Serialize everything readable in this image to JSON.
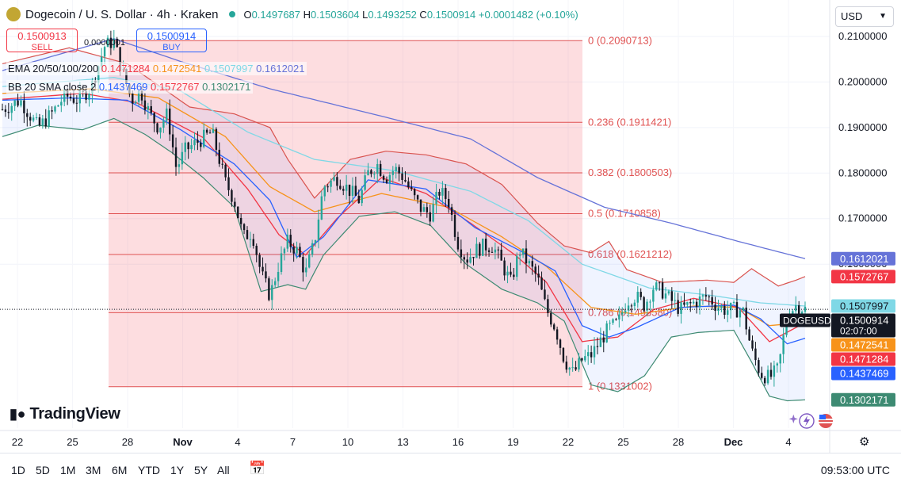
{
  "header": {
    "title": "Dogecoin / U. S. Dollar · 4h · Kraken",
    "open_label": "O",
    "open": "0.1497687",
    "high_label": "H",
    "high": "0.1503604",
    "low_label": "L",
    "low": "0.1493252",
    "close_label": "C",
    "close": "0.1500914",
    "change": "+0.0001482 (+0.10%)"
  },
  "trade": {
    "sell_price": "0.1500913",
    "sell_label": "SELL",
    "buy_price": "0.1500914",
    "buy_label": "BUY",
    "spread": "0.0000001"
  },
  "legend": {
    "ema_label": "EMA 20/50/100/200",
    "ema_values": [
      "0.1471284",
      "0.1472541",
      "0.1507997",
      "0.1612021"
    ],
    "bb_label": "BB 20 SMA close 2",
    "bb_values": [
      "0.1437469",
      "0.1572767",
      "0.1302171"
    ]
  },
  "currency": "USD",
  "branding": "TradingView",
  "timeframes": [
    "1D",
    "5D",
    "1M",
    "3M",
    "6M",
    "YTD",
    "1Y",
    "5Y",
    "All"
  ],
  "clock": "09:53:00 UTC",
  "colors": {
    "up": "#26a69a",
    "down": "#131722",
    "fib": "#e05252",
    "ema20": "#f23645",
    "ema50": "#f7931a",
    "ema100": "#7fd8e6",
    "ema200": "#6673d8",
    "bb_mid": "#2962ff",
    "bb_upper": "#d9534f",
    "bb_lower": "#3d8a72"
  },
  "chart_data": {
    "type": "candlestick",
    "symbol": "DOGEUSD",
    "interval": "4h",
    "y_axis": {
      "ticks": [
        "0.2100000",
        "0.2000000",
        "0.1900000",
        "0.1800000",
        "0.1700000",
        "0.1600000"
      ],
      "ylim": [
        0.124,
        0.218
      ]
    },
    "x_axis": {
      "ticks": [
        "22",
        "25",
        "28",
        "Nov",
        "4",
        "7",
        "10",
        "13",
        "16",
        "19",
        "22",
        "25",
        "28",
        "Dec",
        "4"
      ]
    },
    "price_labels": [
      {
        "text": "0.1612021",
        "value": 0.1612021,
        "color": "#6673d8",
        "fg": "#ffffff"
      },
      {
        "text": "0.1572767",
        "value": 0.1572767,
        "color": "#f23645",
        "fg": "#ffffff"
      },
      {
        "text": "0.1507997",
        "value": 0.1507997,
        "color": "#7fd8e6",
        "fg": "#131722"
      },
      {
        "text": "0.1500914",
        "value": 0.1500914,
        "color": "#131722",
        "fg": "#ffffff",
        "sub": "02:07:00",
        "tag": "DOGEUSD"
      },
      {
        "text": "0.1472541",
        "value": 0.1472541,
        "color": "#f7931a",
        "fg": "#ffffff"
      },
      {
        "text": "0.1471284",
        "value": 0.1471284,
        "color": "#f23645",
        "fg": "#ffffff"
      },
      {
        "text": "0.1437469",
        "value": 0.1437469,
        "color": "#2962ff",
        "fg": "#ffffff"
      },
      {
        "text": "0.1302171",
        "value": 0.1302171,
        "color": "#3d8a72",
        "fg": "#ffffff"
      }
    ],
    "fibonacci": [
      {
        "level": "0",
        "price": 0.2090713,
        "label": "0 (0.2090713)"
      },
      {
        "level": "0.236",
        "price": 0.1911421,
        "label": "0.236 (0.1911421)"
      },
      {
        "level": "0.382",
        "price": 0.1800503,
        "label": "0.382 (0.1800503)"
      },
      {
        "level": "0.5",
        "price": 0.1710858,
        "label": "0.5 (0.1710858)"
      },
      {
        "level": "0.618",
        "price": 0.1621212,
        "label": "0.618 (0.1621212)"
      },
      {
        "level": "0.786",
        "price": 0.149358,
        "label": "0.786 (0.1493580)"
      },
      {
        "level": "1",
        "price": 0.1331002,
        "label": "1 (0.1331002)"
      }
    ],
    "path_points": [
      [
        0,
        0.194
      ],
      [
        4,
        0.196
      ],
      [
        8,
        0.19
      ],
      [
        11,
        0.193
      ],
      [
        14,
        0.197
      ],
      [
        17,
        0.196
      ],
      [
        20,
        0.199
      ],
      [
        23,
        0.208
      ],
      [
        25,
        0.209
      ],
      [
        27,
        0.202
      ],
      [
        29,
        0.196
      ],
      [
        31,
        0.198
      ],
      [
        33,
        0.193
      ],
      [
        35,
        0.19
      ],
      [
        37,
        0.193
      ],
      [
        39,
        0.181
      ],
      [
        41,
        0.185
      ],
      [
        44,
        0.187
      ],
      [
        47,
        0.189
      ],
      [
        50,
        0.178
      ],
      [
        52,
        0.174
      ],
      [
        54,
        0.166
      ],
      [
        56,
        0.167
      ],
      [
        58,
        0.158
      ],
      [
        60,
        0.153
      ],
      [
        62,
        0.16
      ],
      [
        64,
        0.165
      ],
      [
        66,
        0.163
      ],
      [
        68,
        0.158
      ],
      [
        70,
        0.165
      ],
      [
        72,
        0.177
      ],
      [
        75,
        0.179
      ],
      [
        78,
        0.176
      ],
      [
        80,
        0.174
      ],
      [
        82,
        0.18
      ],
      [
        84,
        0.182
      ],
      [
        86,
        0.179
      ],
      [
        88,
        0.181
      ],
      [
        90,
        0.179
      ],
      [
        92,
        0.175
      ],
      [
        94,
        0.172
      ],
      [
        96,
        0.171
      ],
      [
        98,
        0.176
      ],
      [
        100,
        0.174
      ],
      [
        102,
        0.165
      ],
      [
        104,
        0.161
      ],
      [
        106,
        0.163
      ],
      [
        108,
        0.164
      ],
      [
        110,
        0.164
      ],
      [
        112,
        0.16
      ],
      [
        114,
        0.156
      ],
      [
        116,
        0.163
      ],
      [
        118,
        0.16
      ],
      [
        120,
        0.157
      ],
      [
        122,
        0.15
      ],
      [
        124,
        0.146
      ],
      [
        126,
        0.139
      ],
      [
        128,
        0.136
      ],
      [
        130,
        0.139
      ],
      [
        132,
        0.14
      ],
      [
        134,
        0.143
      ],
      [
        136,
        0.146
      ],
      [
        138,
        0.147
      ],
      [
        140,
        0.152
      ],
      [
        142,
        0.153
      ],
      [
        144,
        0.151
      ],
      [
        146,
        0.155
      ],
      [
        148,
        0.154
      ],
      [
        150,
        0.152
      ],
      [
        152,
        0.15
      ],
      [
        154,
        0.151
      ],
      [
        156,
        0.152
      ],
      [
        158,
        0.153
      ],
      [
        160,
        0.151
      ],
      [
        162,
        0.15
      ],
      [
        164,
        0.15
      ],
      [
        166,
        0.15
      ],
      [
        168,
        0.141
      ],
      [
        170,
        0.136
      ],
      [
        172,
        0.135
      ],
      [
        174,
        0.137
      ],
      [
        176,
        0.149
      ],
      [
        178,
        0.151
      ],
      [
        180,
        0.1501
      ]
    ],
    "ema20": [
      [
        0,
        0.1962
      ],
      [
        18,
        0.1975
      ],
      [
        30,
        0.1955
      ],
      [
        45,
        0.1878
      ],
      [
        55,
        0.1765
      ],
      [
        62,
        0.1665
      ],
      [
        68,
        0.162
      ],
      [
        75,
        0.17
      ],
      [
        85,
        0.179
      ],
      [
        95,
        0.1755
      ],
      [
        105,
        0.169
      ],
      [
        115,
        0.162
      ],
      [
        122,
        0.156
      ],
      [
        130,
        0.143
      ],
      [
        138,
        0.144
      ],
      [
        146,
        0.15
      ],
      [
        155,
        0.1525
      ],
      [
        165,
        0.1505
      ],
      [
        172,
        0.143
      ],
      [
        180,
        0.1471284
      ]
    ],
    "ema50": [
      [
        0,
        0.1975
      ],
      [
        20,
        0.1985
      ],
      [
        35,
        0.1965
      ],
      [
        50,
        0.188
      ],
      [
        60,
        0.177
      ],
      [
        70,
        0.1715
      ],
      [
        85,
        0.1755
      ],
      [
        100,
        0.1725
      ],
      [
        112,
        0.166
      ],
      [
        122,
        0.1595
      ],
      [
        132,
        0.1505
      ],
      [
        142,
        0.149
      ],
      [
        155,
        0.1508
      ],
      [
        165,
        0.1505
      ],
      [
        172,
        0.1465
      ],
      [
        180,
        0.1472541
      ]
    ],
    "ema100": [
      [
        0,
        0.199
      ],
      [
        25,
        0.201
      ],
      [
        40,
        0.198
      ],
      [
        55,
        0.189
      ],
      [
        70,
        0.183
      ],
      [
        88,
        0.1805
      ],
      [
        105,
        0.176
      ],
      [
        118,
        0.1695
      ],
      [
        130,
        0.16
      ],
      [
        145,
        0.1548
      ],
      [
        160,
        0.153
      ],
      [
        170,
        0.1515
      ],
      [
        180,
        0.1507997
      ]
    ],
    "ema200": [
      [
        0,
        0.2025
      ],
      [
        25,
        0.2095
      ],
      [
        40,
        0.2045
      ],
      [
        60,
        0.1985
      ],
      [
        85,
        0.1925
      ],
      [
        105,
        0.1875
      ],
      [
        120,
        0.179
      ],
      [
        135,
        0.1725
      ],
      [
        150,
        0.169
      ],
      [
        165,
        0.165
      ],
      [
        180,
        0.1612021
      ]
    ],
    "bb_mid": [
      [
        0,
        0.196
      ],
      [
        15,
        0.1965
      ],
      [
        28,
        0.196
      ],
      [
        40,
        0.1895
      ],
      [
        52,
        0.182
      ],
      [
        60,
        0.174
      ],
      [
        66,
        0.1615
      ],
      [
        72,
        0.166
      ],
      [
        82,
        0.1785
      ],
      [
        95,
        0.1765
      ],
      [
        106,
        0.168
      ],
      [
        116,
        0.163
      ],
      [
        124,
        0.1585
      ],
      [
        130,
        0.1465
      ],
      [
        136,
        0.144
      ],
      [
        142,
        0.146
      ],
      [
        152,
        0.1505
      ],
      [
        164,
        0.151
      ],
      [
        170,
        0.148
      ],
      [
        176,
        0.1425
      ],
      [
        180,
        0.1437469
      ]
    ],
    "bb_upper": [
      [
        0,
        0.204
      ],
      [
        15,
        0.2075
      ],
      [
        28,
        0.204
      ],
      [
        42,
        0.1945
      ],
      [
        52,
        0.193
      ],
      [
        60,
        0.19
      ],
      [
        64,
        0.183
      ],
      [
        70,
        0.1745
      ],
      [
        78,
        0.183
      ],
      [
        86,
        0.1848
      ],
      [
        95,
        0.184
      ],
      [
        104,
        0.182
      ],
      [
        112,
        0.1775
      ],
      [
        120,
        0.169
      ],
      [
        126,
        0.164
      ],
      [
        132,
        0.1625
      ],
      [
        136,
        0.165
      ],
      [
        140,
        0.1588
      ],
      [
        148,
        0.156
      ],
      [
        158,
        0.1565
      ],
      [
        164,
        0.156
      ],
      [
        168,
        0.159
      ],
      [
        174,
        0.1552
      ],
      [
        178,
        0.1565
      ],
      [
        180,
        0.1572767
      ]
    ],
    "bb_lower": [
      [
        0,
        0.188
      ],
      [
        8,
        0.1905
      ],
      [
        18,
        0.1895
      ],
      [
        25,
        0.192
      ],
      [
        32,
        0.1885
      ],
      [
        38,
        0.1845
      ],
      [
        45,
        0.179
      ],
      [
        52,
        0.1725
      ],
      [
        58,
        0.154
      ],
      [
        64,
        0.1555
      ],
      [
        68,
        0.1545
      ],
      [
        72,
        0.162
      ],
      [
        80,
        0.1705
      ],
      [
        88,
        0.1715
      ],
      [
        96,
        0.1685
      ],
      [
        104,
        0.16
      ],
      [
        112,
        0.1545
      ],
      [
        120,
        0.1515
      ],
      [
        126,
        0.1475
      ],
      [
        132,
        0.1335
      ],
      [
        138,
        0.132
      ],
      [
        144,
        0.1355
      ],
      [
        150,
        0.144
      ],
      [
        156,
        0.145
      ],
      [
        164,
        0.1455
      ],
      [
        168,
        0.1385
      ],
      [
        172,
        0.131
      ],
      [
        176,
        0.13
      ],
      [
        180,
        0.1302171
      ]
    ]
  }
}
